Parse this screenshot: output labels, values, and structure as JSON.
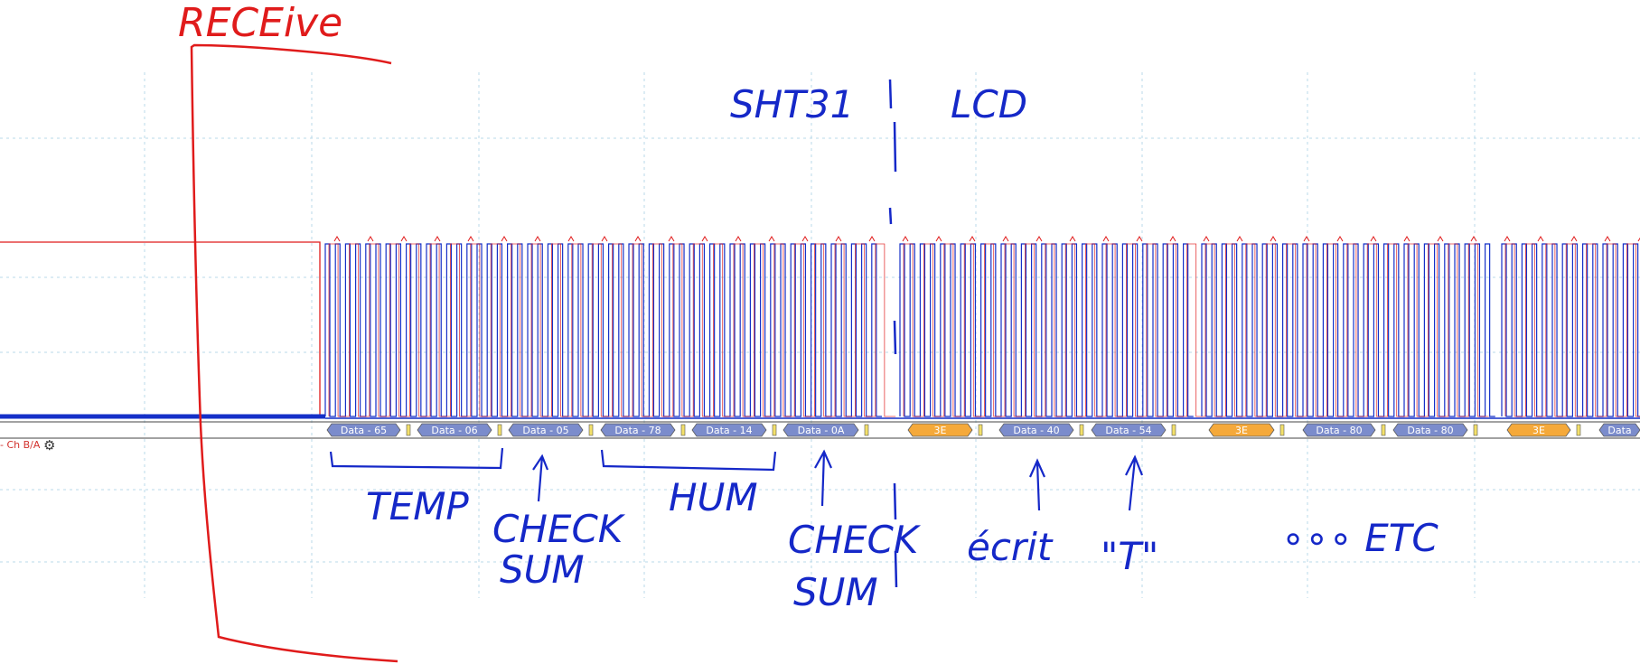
{
  "channel": {
    "label": "- Ch B/A",
    "settings_icon": "gear-icon"
  },
  "decode_packets": [
    {
      "label": "Data - 65",
      "kind": "data"
    },
    {
      "label": "Data - 06",
      "kind": "data"
    },
    {
      "label": "Data - 05",
      "kind": "data"
    },
    {
      "label": "Data - 78",
      "kind": "data"
    },
    {
      "label": "Data - 14",
      "kind": "data"
    },
    {
      "label": "Data - 0A",
      "kind": "data"
    },
    {
      "label": "3E",
      "kind": "address"
    },
    {
      "label": "Data - 40",
      "kind": "data"
    },
    {
      "label": "Data - 54",
      "kind": "data"
    },
    {
      "label": "3E",
      "kind": "address"
    },
    {
      "label": "Data - 80",
      "kind": "data"
    },
    {
      "label": "Data - 80",
      "kind": "data"
    },
    {
      "label": "3E",
      "kind": "address"
    },
    {
      "label": "Data",
      "kind": "data"
    }
  ],
  "annotations": {
    "receive": "RECEive",
    "sht31": "SHT31",
    "lcd": "LCD",
    "temp": "TEMP",
    "checksum1_line1": "CHECK",
    "checksum1_line2": "SUM",
    "hum": "HUM",
    "checksum2_line1": "CHECK",
    "checksum2_line2": "SUM",
    "ecrit": "écrit",
    "t_char": "\"T\"",
    "etc": "∘∘∘ ETC"
  },
  "colors": {
    "signal_blue": "#1530c8",
    "signal_red": "#e01b1b",
    "packet_data": "#7b8ccc",
    "packet_address": "#f5a93a",
    "grid": "#b8d8e8",
    "annotation_blue": "#1528c8",
    "annotation_red": "#e01b1b"
  }
}
